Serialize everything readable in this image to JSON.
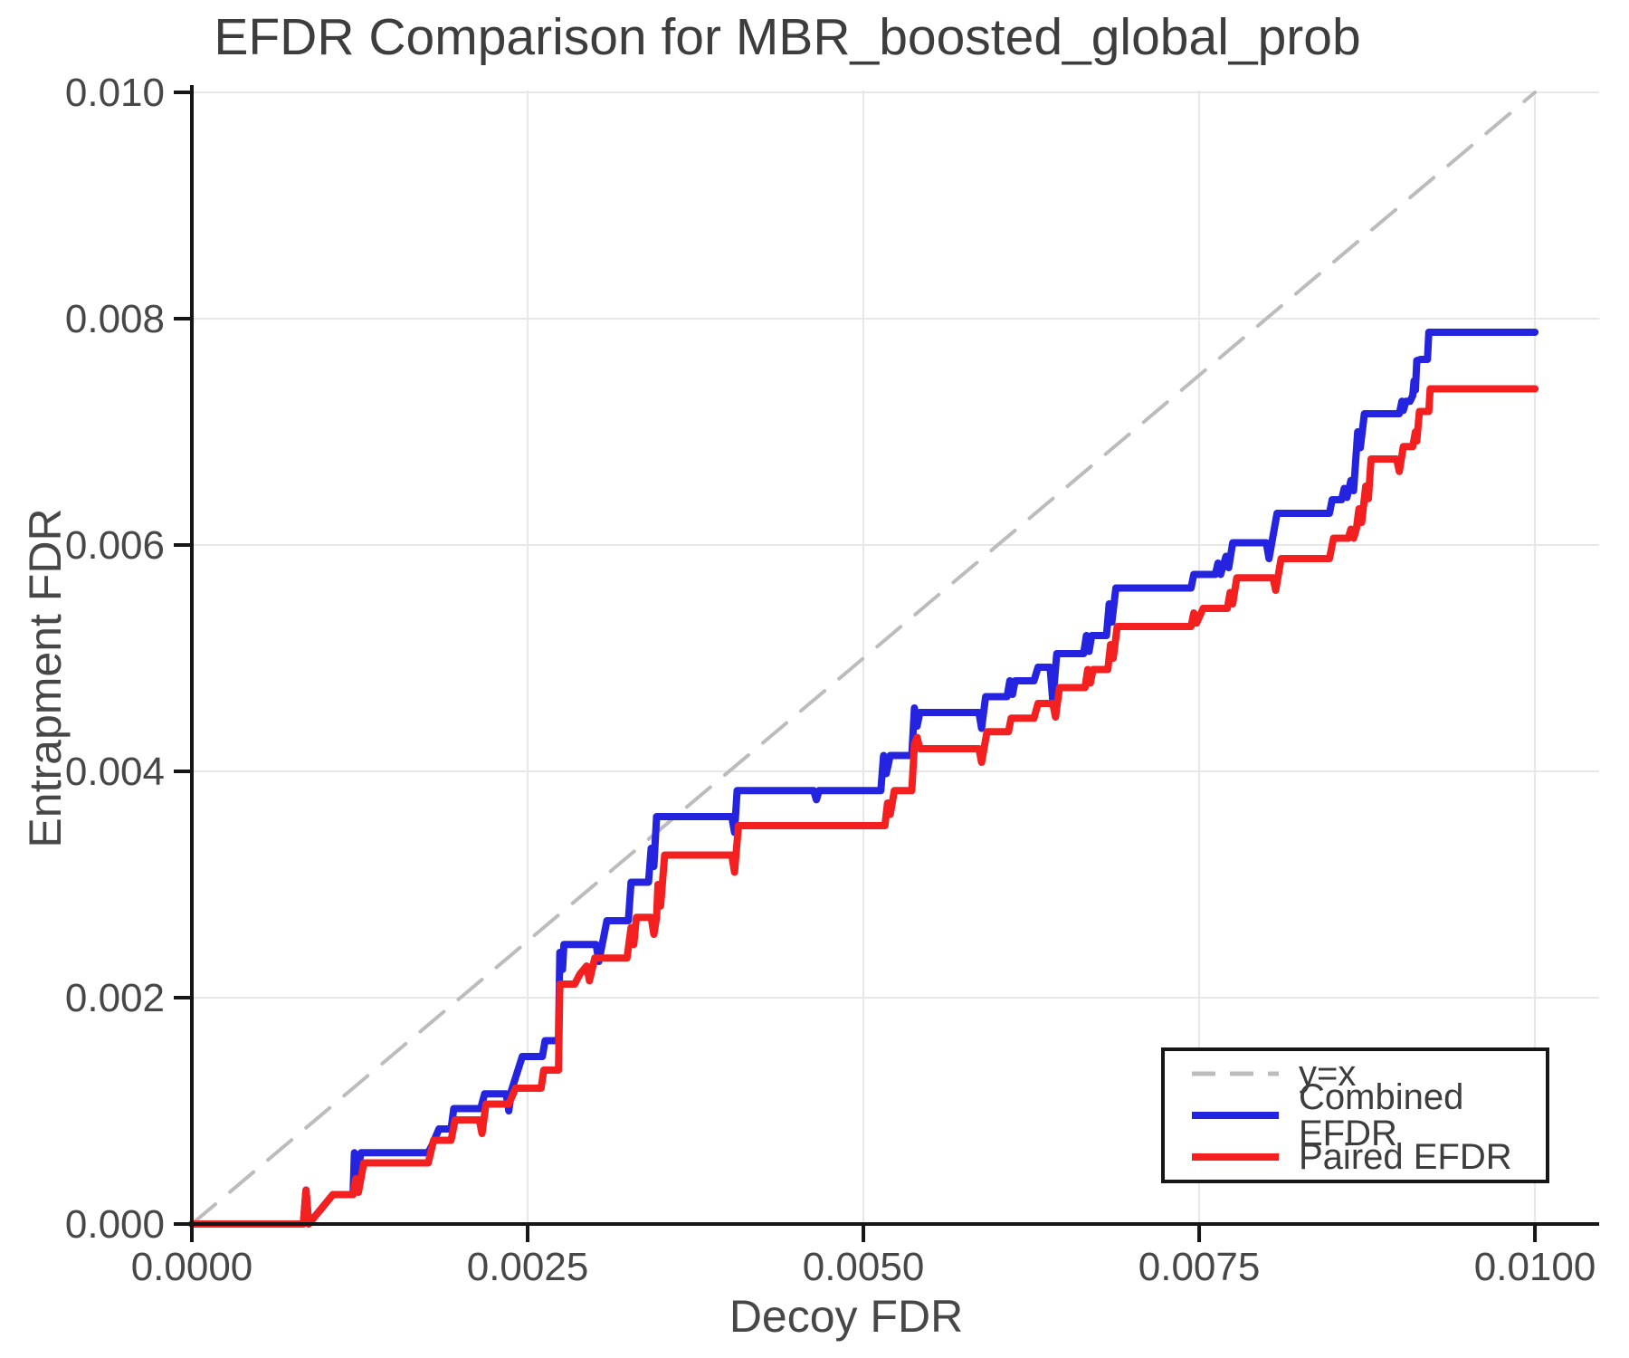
{
  "title": "EFDR Comparison for MBR_boosted_global_prob",
  "colors": {
    "background": "#ffffff",
    "spine": "#161616",
    "grid": "#e7e7e7",
    "tick_label": "#474747",
    "title_text": "#3d3d3d",
    "identity_line": "#bcbcbc",
    "combined_line": "#2323e0",
    "paired_line": "#f42020"
  },
  "chart_data": {
    "type": "line",
    "title": "EFDR Comparison for MBR_boosted_global_prob",
    "xlabel": "Decoy FDR",
    "ylabel": "Entrapment FDR",
    "xlim": [
      0,
      0.010478
    ],
    "ylim": [
      0,
      0.010016
    ],
    "grid": true,
    "x_ticks": {
      "values": [
        0.0,
        0.0025,
        0.005,
        0.0075,
        0.01
      ],
      "labels": [
        "0.0000",
        "0.0025",
        "0.0050",
        "0.0075",
        "0.0100"
      ]
    },
    "y_ticks": {
      "values": [
        0.0,
        0.002,
        0.004,
        0.006,
        0.008,
        0.01
      ],
      "labels": [
        "0.000",
        "0.002",
        "0.004",
        "0.006",
        "0.008",
        "0.010"
      ]
    },
    "legend": {
      "position": "lower right",
      "entries": [
        {
          "label": "y=x",
          "color": "#bcbcbc",
          "dashed": true
        },
        {
          "label": "Combined EFDR",
          "color": "#2323e0",
          "dashed": false
        },
        {
          "label": "Paired EFDR",
          "color": "#f42020",
          "dashed": false
        }
      ]
    },
    "series": [
      {
        "name": "y=x",
        "color": "#bcbcbc",
        "width": 4,
        "dashed": true,
        "points": [
          [
            0.0,
            0.0
          ],
          [
            0.01,
            0.01
          ]
        ]
      },
      {
        "name": "Combined EFDR",
        "color": "#2323e0",
        "width": 8,
        "dashed": false,
        "points": [
          [
            0.0,
            0.0
          ],
          [
            0.00083,
            0.0
          ],
          [
            0.00085,
            0.0003
          ],
          [
            0.00087,
            0.0
          ],
          [
            0.00105,
            0.00026
          ],
          [
            0.0012,
            0.00026
          ],
          [
            0.00121,
            0.00063
          ],
          [
            0.00123,
            0.00045
          ],
          [
            0.00126,
            0.00063
          ],
          [
            0.00176,
            0.00063
          ],
          [
            0.00179,
            0.0007
          ],
          [
            0.00184,
            0.00084
          ],
          [
            0.00193,
            0.00084
          ],
          [
            0.00195,
            0.00102
          ],
          [
            0.00215,
            0.00102
          ],
          [
            0.00218,
            0.00115
          ],
          [
            0.00234,
            0.00115
          ],
          [
            0.00236,
            0.001
          ],
          [
            0.00238,
            0.00118
          ],
          [
            0.00242,
            0.00133
          ],
          [
            0.00246,
            0.00148
          ],
          [
            0.00261,
            0.00148
          ],
          [
            0.00263,
            0.00162
          ],
          [
            0.00273,
            0.00162
          ],
          [
            0.00274,
            0.0024
          ],
          [
            0.00276,
            0.00225
          ],
          [
            0.00277,
            0.00247
          ],
          [
            0.00301,
            0.00247
          ],
          [
            0.00303,
            0.00232
          ],
          [
            0.00309,
            0.00268
          ],
          [
            0.00325,
            0.00268
          ],
          [
            0.00327,
            0.00302
          ],
          [
            0.0034,
            0.00302
          ],
          [
            0.00342,
            0.00332
          ],
          [
            0.00344,
            0.00316
          ],
          [
            0.00346,
            0.0036
          ],
          [
            0.00402,
            0.0036
          ],
          [
            0.00404,
            0.00346
          ],
          [
            0.00406,
            0.00383
          ],
          [
            0.00463,
            0.00383
          ],
          [
            0.00465,
            0.00375
          ],
          [
            0.00467,
            0.00383
          ],
          [
            0.00513,
            0.00383
          ],
          [
            0.00515,
            0.00414
          ],
          [
            0.00517,
            0.00398
          ],
          [
            0.0052,
            0.00414
          ],
          [
            0.00536,
            0.00414
          ],
          [
            0.00538,
            0.00456
          ],
          [
            0.0054,
            0.0044
          ],
          [
            0.00542,
            0.00452
          ],
          [
            0.00586,
            0.00452
          ],
          [
            0.00588,
            0.00438
          ],
          [
            0.00591,
            0.00466
          ],
          [
            0.00607,
            0.00466
          ],
          [
            0.00609,
            0.0048
          ],
          [
            0.00611,
            0.00468
          ],
          [
            0.00613,
            0.0048
          ],
          [
            0.00627,
            0.0048
          ],
          [
            0.0063,
            0.00492
          ],
          [
            0.00639,
            0.00492
          ],
          [
            0.00641,
            0.00462
          ],
          [
            0.00644,
            0.00504
          ],
          [
            0.00664,
            0.00504
          ],
          [
            0.00666,
            0.0052
          ],
          [
            0.00668,
            0.00506
          ],
          [
            0.0067,
            0.0052
          ],
          [
            0.00681,
            0.0052
          ],
          [
            0.00683,
            0.00548
          ],
          [
            0.00685,
            0.00532
          ],
          [
            0.00688,
            0.00562
          ],
          [
            0.00744,
            0.00562
          ],
          [
            0.00746,
            0.00574
          ],
          [
            0.00762,
            0.00574
          ],
          [
            0.00764,
            0.00584
          ],
          [
            0.00766,
            0.00574
          ],
          [
            0.0077,
            0.0059
          ],
          [
            0.00772,
            0.0058
          ],
          [
            0.00775,
            0.00602
          ],
          [
            0.008,
            0.00602
          ],
          [
            0.00802,
            0.00588
          ],
          [
            0.00808,
            0.00628
          ],
          [
            0.00847,
            0.00628
          ],
          [
            0.00849,
            0.0064
          ],
          [
            0.00856,
            0.0064
          ],
          [
            0.00858,
            0.0065
          ],
          [
            0.0086,
            0.00642
          ],
          [
            0.00863,
            0.00657
          ],
          [
            0.00865,
            0.00648
          ],
          [
            0.00868,
            0.007
          ],
          [
            0.0087,
            0.00686
          ],
          [
            0.00873,
            0.00716
          ],
          [
            0.00899,
            0.00716
          ],
          [
            0.00901,
            0.00727
          ],
          [
            0.00902,
            0.00719
          ],
          [
            0.00904,
            0.00727
          ],
          [
            0.00907,
            0.00727
          ],
          [
            0.00909,
            0.00732
          ],
          [
            0.0091,
            0.00745
          ],
          [
            0.00911,
            0.00737
          ],
          [
            0.00912,
            0.00763
          ],
          [
            0.00915,
            0.00764
          ],
          [
            0.0092,
            0.00764
          ],
          [
            0.00921,
            0.00788
          ],
          [
            0.01,
            0.00788
          ]
        ]
      },
      {
        "name": "Paired EFDR",
        "color": "#f42020",
        "width": 8,
        "dashed": false,
        "points": [
          [
            0.0,
            0.0
          ],
          [
            0.00083,
            0.0
          ],
          [
            0.00085,
            0.0003
          ],
          [
            0.00087,
            0.0
          ],
          [
            0.00105,
            0.00026
          ],
          [
            0.0012,
            0.00026
          ],
          [
            0.00122,
            0.0004
          ],
          [
            0.00124,
            0.00028
          ],
          [
            0.00128,
            0.00054
          ],
          [
            0.00176,
            0.00054
          ],
          [
            0.0018,
            0.00074
          ],
          [
            0.00193,
            0.00074
          ],
          [
            0.00196,
            0.00092
          ],
          [
            0.00214,
            0.00092
          ],
          [
            0.00216,
            0.0008
          ],
          [
            0.00219,
            0.00106
          ],
          [
            0.00236,
            0.00106
          ],
          [
            0.00241,
            0.0012
          ],
          [
            0.0026,
            0.0012
          ],
          [
            0.00262,
            0.00136
          ],
          [
            0.00273,
            0.00136
          ],
          [
            0.00274,
            0.00212
          ],
          [
            0.00285,
            0.00212
          ],
          [
            0.00289,
            0.00221
          ],
          [
            0.00294,
            0.00228
          ],
          [
            0.00296,
            0.00215
          ],
          [
            0.003,
            0.00235
          ],
          [
            0.00324,
            0.00235
          ],
          [
            0.00327,
            0.00262
          ],
          [
            0.00329,
            0.00247
          ],
          [
            0.00331,
            0.00271
          ],
          [
            0.00342,
            0.00271
          ],
          [
            0.00344,
            0.00256
          ],
          [
            0.00346,
            0.00271
          ],
          [
            0.00347,
            0.003
          ],
          [
            0.00349,
            0.00281
          ],
          [
            0.00352,
            0.00326
          ],
          [
            0.00402,
            0.00326
          ],
          [
            0.00404,
            0.00311
          ],
          [
            0.00407,
            0.00352
          ],
          [
            0.00516,
            0.00352
          ],
          [
            0.00518,
            0.00372
          ],
          [
            0.0052,
            0.00362
          ],
          [
            0.00523,
            0.00383
          ],
          [
            0.00536,
            0.00383
          ],
          [
            0.00538,
            0.00424
          ],
          [
            0.0054,
            0.0043
          ],
          [
            0.00542,
            0.0042
          ],
          [
            0.00586,
            0.0042
          ],
          [
            0.00588,
            0.00408
          ],
          [
            0.00592,
            0.00435
          ],
          [
            0.00608,
            0.00435
          ],
          [
            0.0061,
            0.00447
          ],
          [
            0.00627,
            0.00447
          ],
          [
            0.0063,
            0.0046
          ],
          [
            0.00641,
            0.0046
          ],
          [
            0.00643,
            0.00448
          ],
          [
            0.00646,
            0.00474
          ],
          [
            0.00665,
            0.00474
          ],
          [
            0.00667,
            0.0049
          ],
          [
            0.00669,
            0.00478
          ],
          [
            0.00671,
            0.0049
          ],
          [
            0.00682,
            0.0049
          ],
          [
            0.00684,
            0.00512
          ],
          [
            0.00686,
            0.005
          ],
          [
            0.00689,
            0.00528
          ],
          [
            0.00744,
            0.00528
          ],
          [
            0.00746,
            0.0054
          ],
          [
            0.00748,
            0.00531
          ],
          [
            0.00753,
            0.00544
          ],
          [
            0.00771,
            0.00544
          ],
          [
            0.00773,
            0.00558
          ],
          [
            0.00775,
            0.00548
          ],
          [
            0.00778,
            0.00571
          ],
          [
            0.00805,
            0.00571
          ],
          [
            0.00807,
            0.0056
          ],
          [
            0.00811,
            0.00588
          ],
          [
            0.00847,
            0.00588
          ],
          [
            0.0085,
            0.00606
          ],
          [
            0.00861,
            0.00606
          ],
          [
            0.00863,
            0.00614
          ],
          [
            0.00865,
            0.00606
          ],
          [
            0.00867,
            0.00614
          ],
          [
            0.00869,
            0.00632
          ],
          [
            0.00871,
            0.0062
          ],
          [
            0.00874,
            0.00652
          ],
          [
            0.00876,
            0.00641
          ],
          [
            0.00878,
            0.00676
          ],
          [
            0.00897,
            0.00676
          ],
          [
            0.00899,
            0.00665
          ],
          [
            0.00902,
            0.00687
          ],
          [
            0.00909,
            0.00687
          ],
          [
            0.00911,
            0.007
          ],
          [
            0.00912,
            0.00692
          ],
          [
            0.00914,
            0.00718
          ],
          [
            0.00921,
            0.00718
          ],
          [
            0.00922,
            0.00738
          ],
          [
            0.01,
            0.00738
          ]
        ]
      }
    ]
  }
}
